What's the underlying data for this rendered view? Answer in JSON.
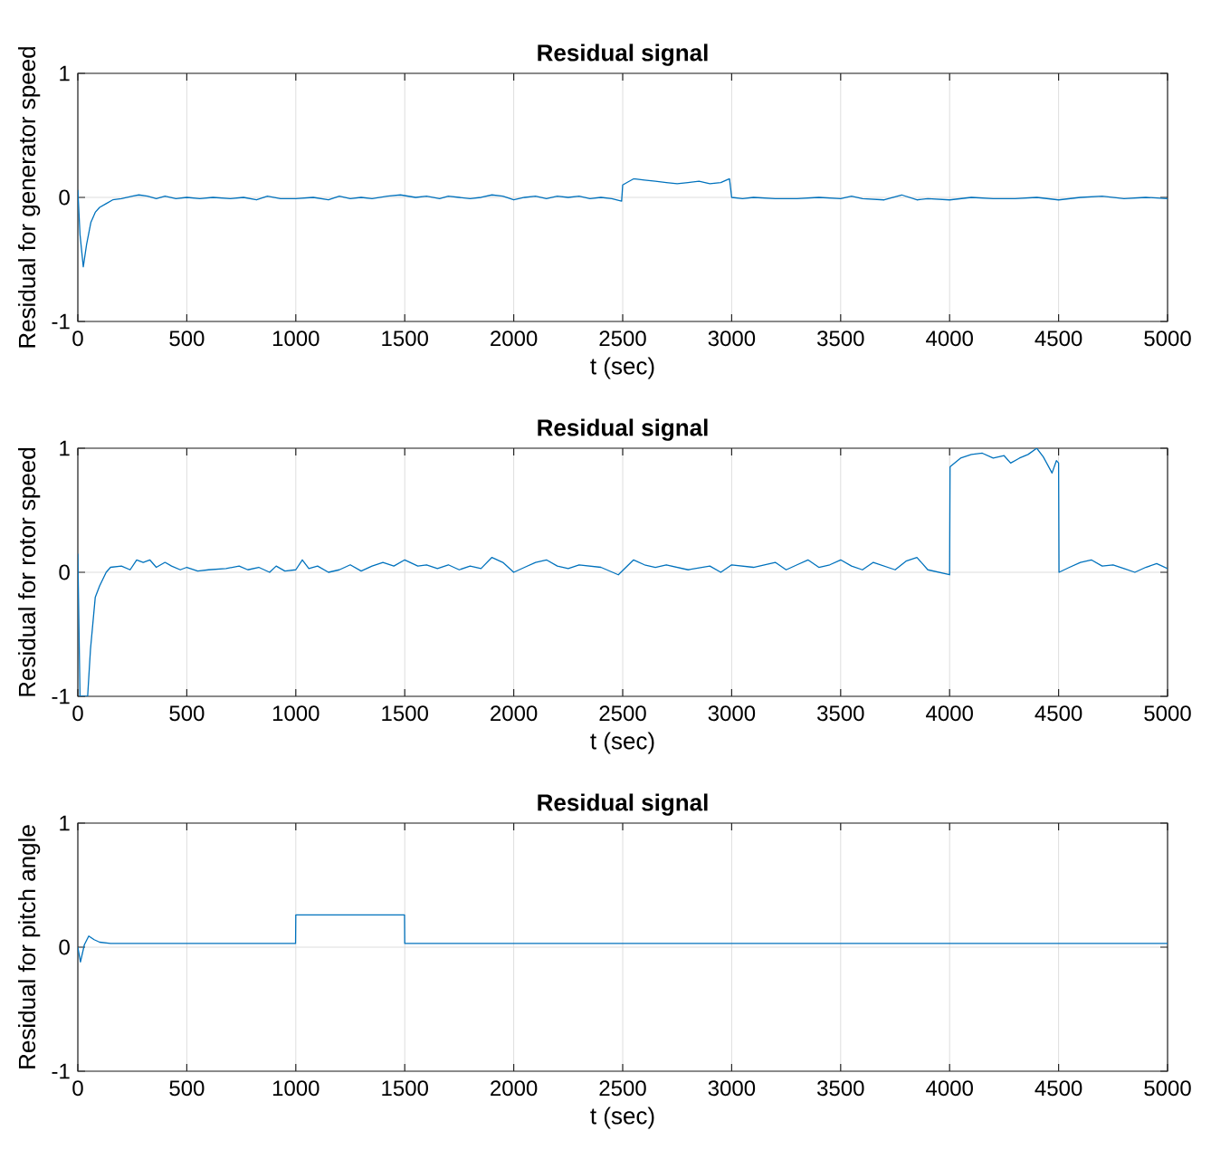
{
  "chart_data": [
    {
      "type": "line",
      "title": "Residual signal",
      "xlabel": "t (sec)",
      "ylabel": "Residual for generator speed",
      "color": "#0072bd",
      "grid": true,
      "xlim": [
        0,
        5000
      ],
      "ylim": [
        -1,
        1
      ],
      "xticks": [
        0,
        500,
        1000,
        1500,
        2000,
        2500,
        3000,
        3500,
        4000,
        4500,
        5000
      ],
      "yticks": [
        -1,
        0,
        1
      ],
      "x": [
        0,
        10,
        25,
        40,
        60,
        80,
        100,
        130,
        160,
        200,
        250,
        280,
        320,
        360,
        400,
        450,
        500,
        560,
        620,
        700,
        760,
        820,
        870,
        930,
        1000,
        1080,
        1150,
        1200,
        1250,
        1300,
        1350,
        1420,
        1480,
        1550,
        1600,
        1660,
        1700,
        1750,
        1800,
        1850,
        1900,
        1950,
        2000,
        2050,
        2100,
        2150,
        2200,
        2250,
        2300,
        2350,
        2400,
        2450,
        2495,
        2500,
        2520,
        2550,
        2600,
        2650,
        2700,
        2750,
        2800,
        2850,
        2900,
        2950,
        2990,
        3000,
        3050,
        3100,
        3200,
        3300,
        3400,
        3500,
        3550,
        3600,
        3700,
        3780,
        3850,
        3900,
        4000,
        4100,
        4200,
        4300,
        4400,
        4500,
        4600,
        4700,
        4800,
        4900,
        5000
      ],
      "values": [
        0.06,
        -0.3,
        -0.56,
        -0.38,
        -0.2,
        -0.12,
        -0.08,
        -0.05,
        -0.02,
        -0.01,
        0.01,
        0.02,
        0.01,
        -0.01,
        0.01,
        -0.01,
        0,
        -0.01,
        0,
        -0.01,
        0,
        -0.02,
        0.01,
        -0.01,
        -0.01,
        0,
        -0.02,
        0.01,
        -0.01,
        0,
        -0.01,
        0.01,
        0.02,
        0,
        0.01,
        -0.01,
        0.01,
        0,
        -0.01,
        0,
        0.02,
        0.01,
        -0.02,
        0,
        0.01,
        -0.01,
        0.01,
        0,
        0.01,
        -0.01,
        0,
        -0.01,
        -0.03,
        0.1,
        0.12,
        0.15,
        0.14,
        0.13,
        0.12,
        0.11,
        0.12,
        0.13,
        0.11,
        0.12,
        0.15,
        0,
        -0.01,
        0,
        -0.01,
        -0.01,
        0,
        -0.01,
        0.01,
        -0.01,
        -0.02,
        0.02,
        -0.02,
        -0.01,
        -0.02,
        0,
        -0.01,
        -0.01,
        0,
        -0.02,
        0,
        0.01,
        -0.01,
        0,
        -0.01
      ]
    },
    {
      "type": "line",
      "title": "Residual signal",
      "xlabel": "t (sec)",
      "ylabel": "Residual for rotor speed",
      "color": "#0072bd",
      "grid": true,
      "xlim": [
        0,
        5000
      ],
      "ylim": [
        -1,
        1
      ],
      "xticks": [
        0,
        500,
        1000,
        1500,
        2000,
        2500,
        3000,
        3500,
        4000,
        4500,
        5000
      ],
      "yticks": [
        -1,
        0,
        1
      ],
      "x": [
        0,
        10,
        45,
        58,
        80,
        100,
        130,
        150,
        200,
        240,
        270,
        300,
        330,
        360,
        400,
        430,
        470,
        500,
        550,
        600,
        680,
        740,
        780,
        830,
        880,
        910,
        950,
        1000,
        1030,
        1060,
        1100,
        1150,
        1200,
        1250,
        1300,
        1350,
        1400,
        1450,
        1500,
        1560,
        1600,
        1650,
        1700,
        1750,
        1800,
        1850,
        1900,
        1950,
        2000,
        2050,
        2100,
        2150,
        2200,
        2250,
        2300,
        2400,
        2480,
        2550,
        2600,
        2650,
        2700,
        2800,
        2900,
        2950,
        3000,
        3100,
        3200,
        3250,
        3300,
        3350,
        3400,
        3450,
        3500,
        3550,
        3600,
        3650,
        3700,
        3750,
        3800,
        3850,
        3900,
        3950,
        4000,
        4002,
        4050,
        4100,
        4150,
        4200,
        4250,
        4280,
        4320,
        4360,
        4400,
        4430,
        4470,
        4490,
        4500,
        4502,
        4550,
        4600,
        4650,
        4700,
        4750,
        4800,
        4850,
        4900,
        4950,
        5000
      ],
      "values": [
        0.15,
        -1,
        -1,
        -0.62,
        -0.2,
        -0.11,
        0,
        0.04,
        0.05,
        0.02,
        0.1,
        0.08,
        0.1,
        0.04,
        0.08,
        0.05,
        0.02,
        0.04,
        0.01,
        0.02,
        0.03,
        0.05,
        0.02,
        0.04,
        0,
        0.05,
        0.01,
        0.02,
        0.1,
        0.03,
        0.05,
        0,
        0.02,
        0.06,
        0.01,
        0.05,
        0.08,
        0.05,
        0.1,
        0.05,
        0.06,
        0.03,
        0.06,
        0.02,
        0.05,
        0.03,
        0.12,
        0.08,
        0,
        0.04,
        0.08,
        0.1,
        0.05,
        0.03,
        0.06,
        0.04,
        -0.02,
        0.1,
        0.06,
        0.04,
        0.06,
        0.02,
        0.05,
        0,
        0.06,
        0.04,
        0.08,
        0.02,
        0.06,
        0.1,
        0.04,
        0.06,
        0.1,
        0.05,
        0.02,
        0.08,
        0.05,
        0.02,
        0.09,
        0.12,
        0.02,
        0,
        -0.02,
        0.85,
        0.92,
        0.95,
        0.96,
        0.92,
        0.94,
        0.88,
        0.92,
        0.95,
        1,
        0.93,
        0.8,
        0.9,
        0.88,
        0,
        0.04,
        0.08,
        0.1,
        0.05,
        0.06,
        0.03,
        0,
        0.04,
        0.07,
        0.03
      ]
    },
    {
      "type": "line",
      "title": "Residual signal",
      "xlabel": "t (sec)",
      "ylabel": "Residual for pitch angle",
      "color": "#0072bd",
      "grid": true,
      "xlim": [
        0,
        5000
      ],
      "ylim": [
        -1,
        1
      ],
      "xticks": [
        0,
        500,
        1000,
        1500,
        2000,
        2500,
        3000,
        3500,
        4000,
        4500,
        5000
      ],
      "yticks": [
        -1,
        0,
        1
      ],
      "x": [
        0,
        12,
        30,
        50,
        75,
        100,
        150,
        200,
        999,
        1000,
        1499,
        1500,
        5000
      ],
      "values": [
        0,
        -0.12,
        0.02,
        0.09,
        0.06,
        0.04,
        0.03,
        0.03,
        0.03,
        0.26,
        0.26,
        0.03,
        0.03
      ]
    }
  ]
}
